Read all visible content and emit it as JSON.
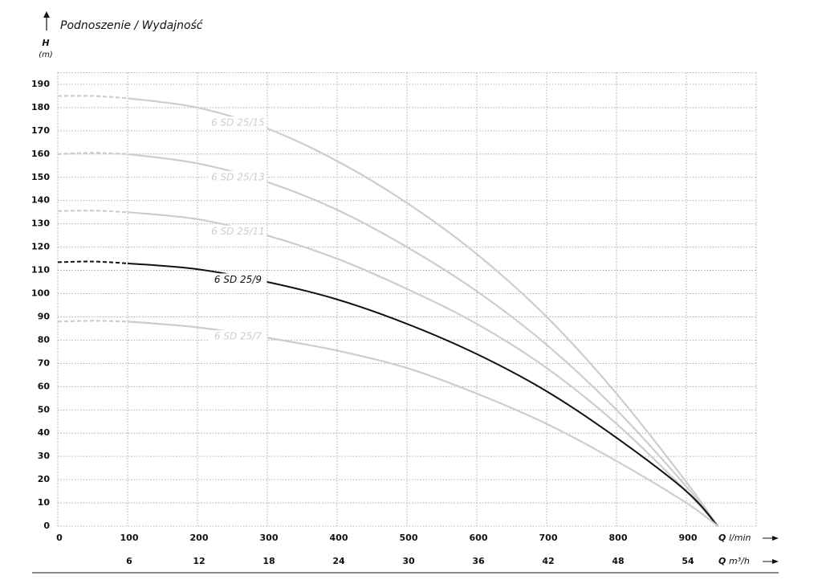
{
  "chart_data": {
    "type": "line",
    "title": "Podnoszenie / Wydajność",
    "ylabel": {
      "symbol": "H",
      "unit": "(m)"
    },
    "xlabel": {
      "symbol": "Q",
      "unit": "l/min"
    },
    "x2label": {
      "symbol": "Q",
      "unit": "m³/h"
    },
    "x": [
      0,
      50,
      100,
      200,
      300,
      400,
      500,
      600,
      700,
      800,
      900,
      945
    ],
    "dashed_to_x": 100,
    "series": [
      {
        "name": "6 SD 25/15",
        "color": "#cdcdcd",
        "values": [
          185,
          185,
          184,
          180,
          171,
          157,
          139,
          117,
          90,
          57,
          19,
          0
        ]
      },
      {
        "name": "6 SD 25/13",
        "color": "#cdcdcd",
        "values": [
          160,
          160.5,
          160,
          156,
          148,
          136,
          120,
          101,
          78,
          50,
          17,
          0
        ]
      },
      {
        "name": "6 SD 25/11",
        "color": "#cdcdcd",
        "values": [
          135.5,
          135.7,
          135,
          132,
          125,
          115,
          102,
          87,
          68,
          44,
          15,
          0
        ]
      },
      {
        "name": "6 SD 25/9",
        "color": "#111111",
        "values": [
          113.5,
          113.8,
          113,
          110.5,
          105,
          97.5,
          87,
          74,
          58,
          38,
          15,
          0
        ]
      },
      {
        "name": "6 SD 25/7",
        "color": "#cdcdcd",
        "values": [
          88,
          88.3,
          88,
          85.5,
          81,
          75.5,
          68,
          57,
          44,
          28,
          10,
          0
        ]
      }
    ],
    "xlim": [
      0,
      1000
    ],
    "ylim": [
      0,
      195
    ],
    "x2lim": [
      0,
      60
    ],
    "xticks": [
      0,
      100,
      200,
      300,
      400,
      500,
      600,
      700,
      800,
      900
    ],
    "x2ticks": [
      6,
      12,
      18,
      24,
      30,
      36,
      42,
      48,
      54
    ],
    "yticks": [
      0,
      10,
      20,
      30,
      40,
      50,
      60,
      70,
      80,
      90,
      100,
      110,
      120,
      130,
      140,
      150,
      160,
      170,
      180,
      190
    ],
    "grid": true
  }
}
